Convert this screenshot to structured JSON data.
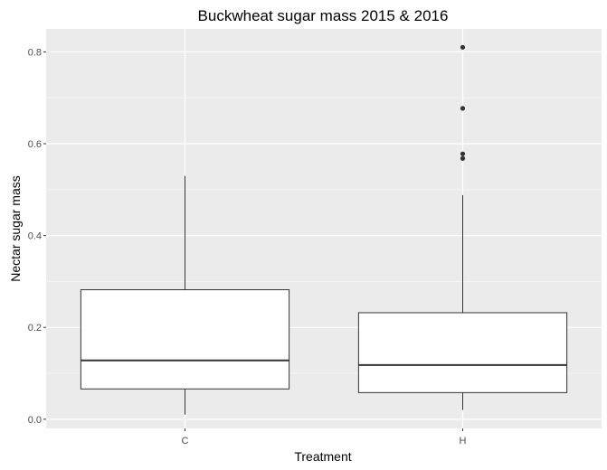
{
  "chart_data": {
    "type": "box",
    "title": "Buckwheat sugar mass 2015 & 2016",
    "xlabel": "Treatment",
    "ylabel": "Nectar sugar mass",
    "ylim": [
      -0.02,
      0.85
    ],
    "y_ticks": [
      0.0,
      0.2,
      0.4,
      0.6,
      0.8
    ],
    "y_tick_labels": [
      "0.0",
      "0.2",
      "0.4",
      "0.6",
      "0.8"
    ],
    "grid": true,
    "categories": [
      "C",
      "H"
    ],
    "boxes": [
      {
        "category": "C",
        "whisker_low": 0.01,
        "q1": 0.066,
        "median": 0.128,
        "q3": 0.282,
        "whisker_high": 0.53,
        "outliers": []
      },
      {
        "category": "H",
        "whisker_low": 0.02,
        "q1": 0.058,
        "median": 0.118,
        "q3": 0.232,
        "whisker_high": 0.488,
        "outliers": [
          0.568,
          0.578,
          0.677,
          0.81
        ]
      }
    ],
    "colors": {
      "panel_background": "#ebebeb",
      "major_grid": "#ffffff",
      "minor_grid": "#f5f5f5",
      "box_fill": "#ffffff",
      "box_stroke": "#333333",
      "outlier": "#333333",
      "tick_text": "#4d4d4d"
    }
  }
}
